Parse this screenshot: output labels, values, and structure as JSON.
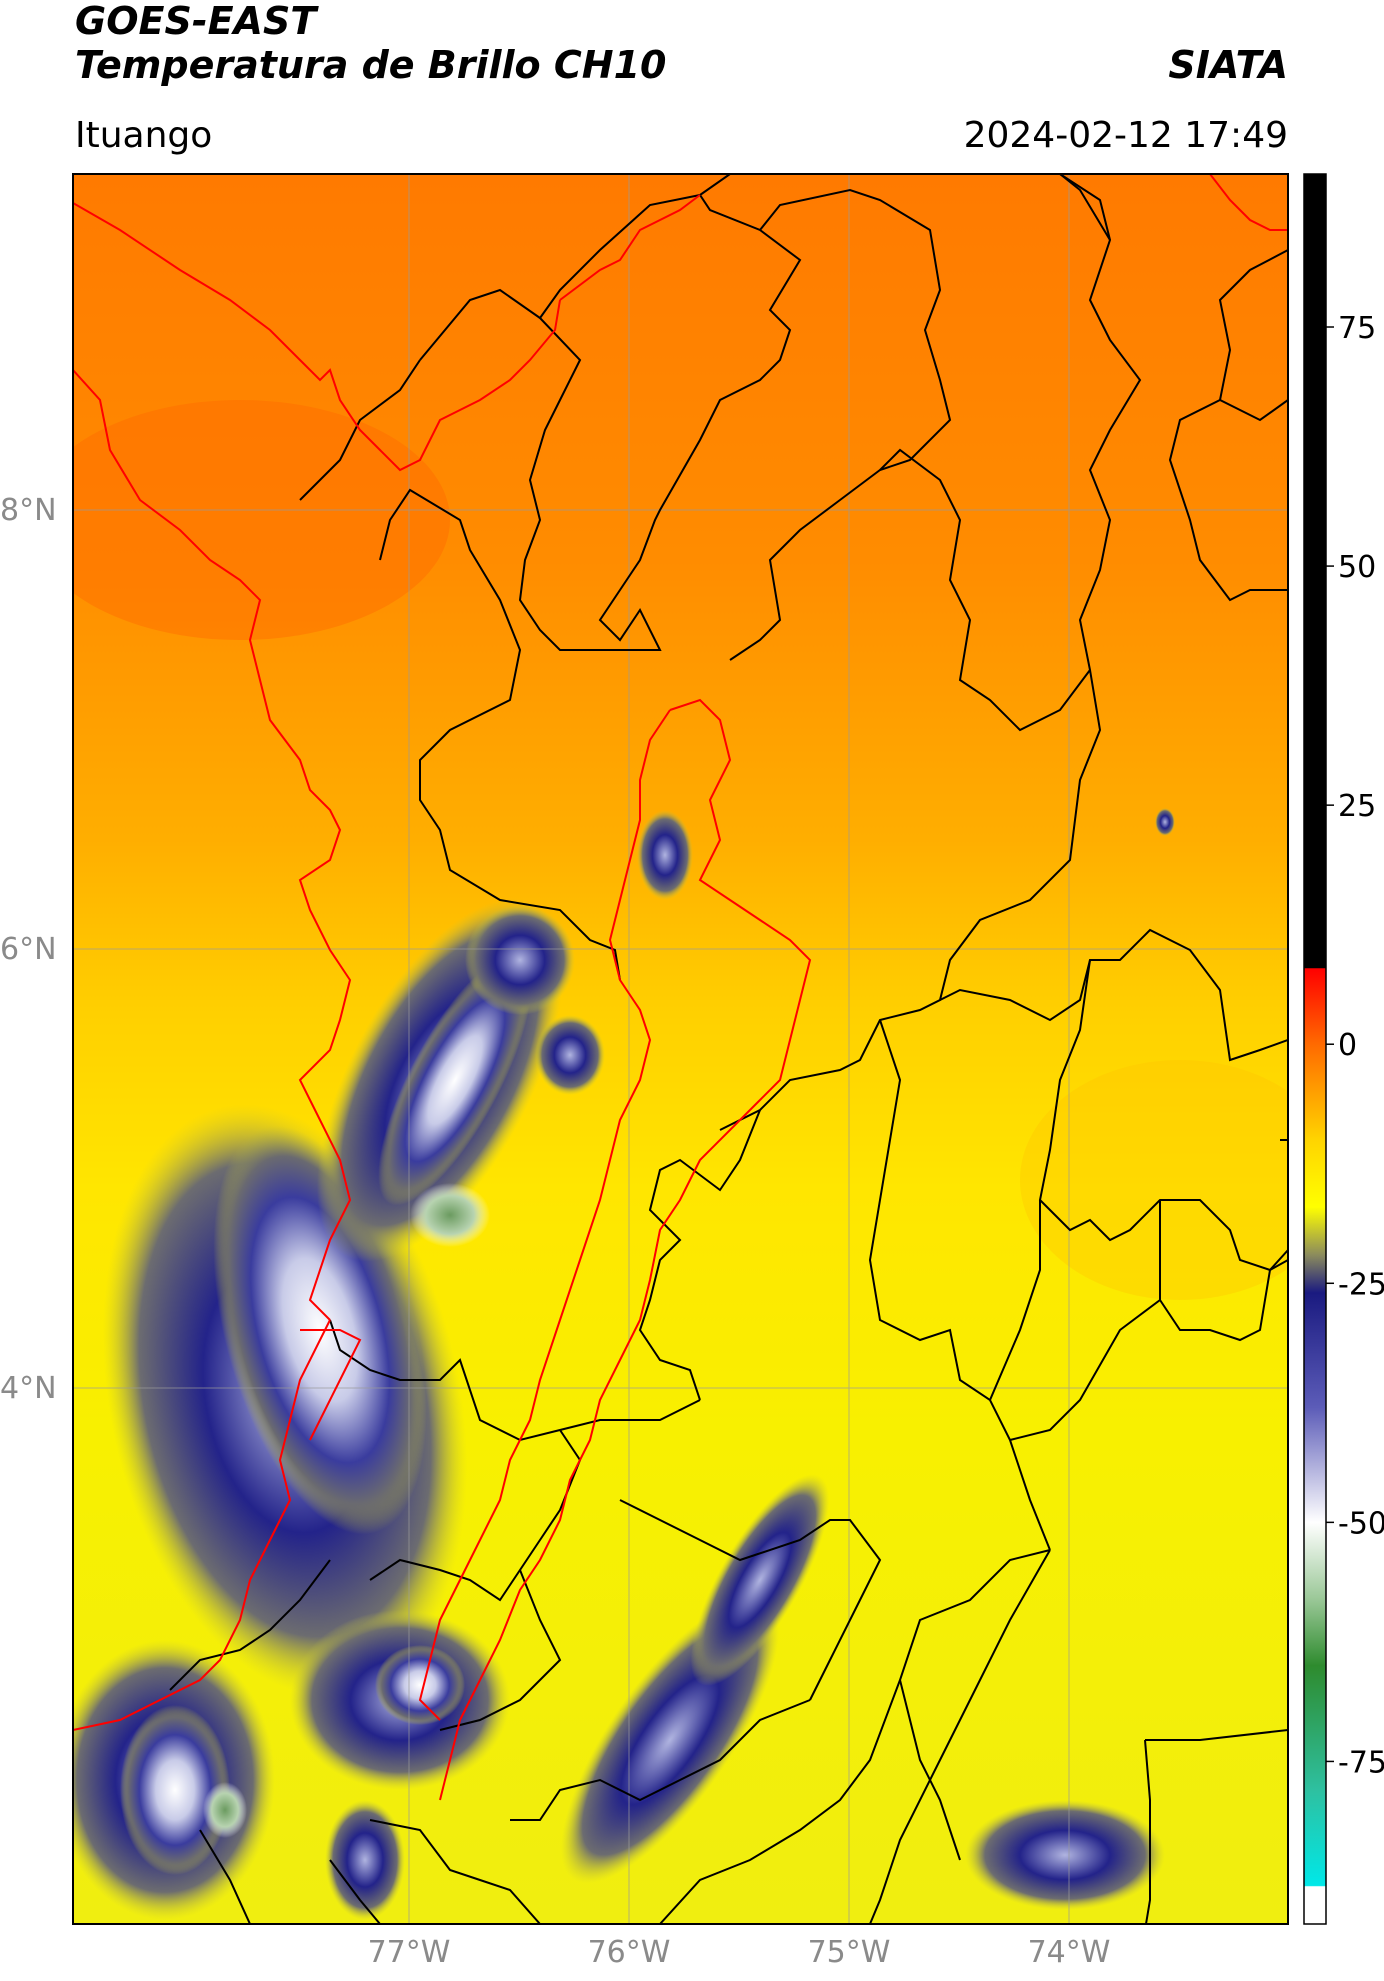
{
  "header": {
    "title_line1": "GOES-EAST",
    "title_line2": "Temperatura de Brillo CH10",
    "brand": "SIATA",
    "region": "Ituango",
    "datetime": "2024-02-12 17:49"
  },
  "map": {
    "lon_labels": [
      "77°W",
      "76°W",
      "75°W",
      "74°W"
    ],
    "lat_labels": [
      "8°N",
      "6°N",
      "4°N"
    ],
    "border_color": "#000000",
    "region_outline_color": "#ff0000",
    "gridline_color": "#9a9a9a"
  },
  "colorbar": {
    "tick_labels": [
      "75",
      "50",
      "25",
      "0",
      "-25",
      "-50",
      "-75"
    ],
    "tick_values": [
      75,
      50,
      25,
      0,
      -25,
      -50,
      -75
    ],
    "range": [
      -92,
      91
    ],
    "stops": [
      {
        "value": 91,
        "color": "#000000"
      },
      {
        "value": 8,
        "color": "#000000"
      },
      {
        "value": 7.9,
        "color": "#ff0000"
      },
      {
        "value": 0,
        "color": "#ff6a00"
      },
      {
        "value": -10,
        "color": "#ffd400"
      },
      {
        "value": -17,
        "color": "#ffff00"
      },
      {
        "value": -22,
        "color": "#8c8c5c"
      },
      {
        "value": -26,
        "color": "#1a1a80"
      },
      {
        "value": -38,
        "color": "#5c5cb8"
      },
      {
        "value": -50,
        "color": "#ffffff"
      },
      {
        "value": -58,
        "color": "#9bc898"
      },
      {
        "value": -65,
        "color": "#2e8b2e"
      },
      {
        "value": -78,
        "color": "#2ec0a0"
      },
      {
        "value": -88,
        "color": "#00e8e8"
      },
      {
        "value": -88.1,
        "color": "#ffffff"
      },
      {
        "value": -92,
        "color": "#ffffff"
      }
    ]
  }
}
